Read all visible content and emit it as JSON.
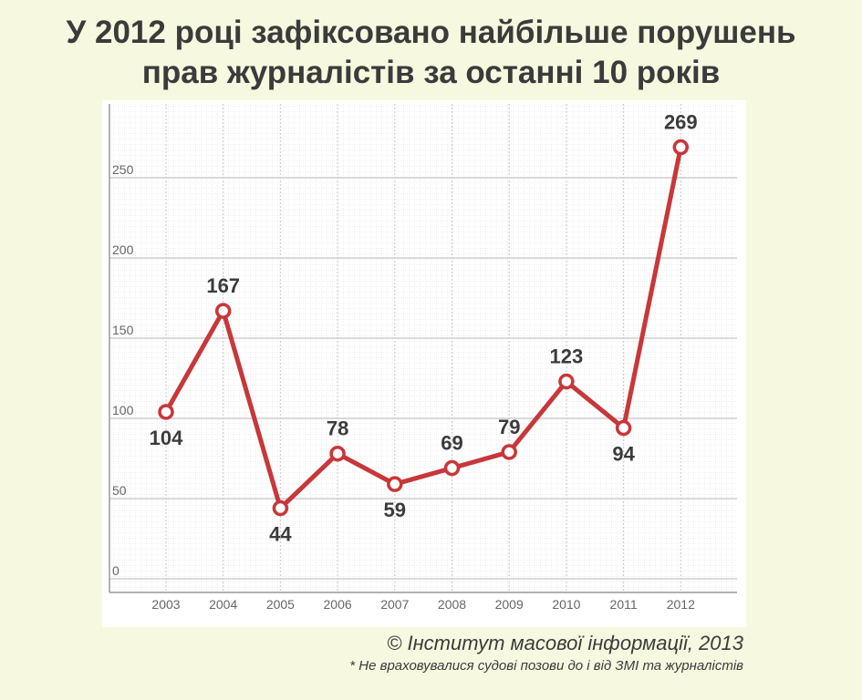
{
  "header": {
    "title_line1": "У 2012 році зафіксовано найбільше порушень",
    "title_line2": "прав журналістів за останні 10 років"
  },
  "footer": {
    "source": "© Інститут масової інформації, 2013",
    "note": "* Не враховувалися судові позови до і від ЗМІ та журналістів"
  },
  "colors": {
    "background": "#f6f9df",
    "line": "#c8373a",
    "text": "#3b3b3b",
    "grid": "#cfcfcf"
  },
  "chart_data": {
    "type": "line",
    "categories": [
      "2003",
      "2004",
      "2005",
      "2006",
      "2007",
      "2008",
      "2009",
      "2010",
      "2011",
      "2012"
    ],
    "values": [
      104,
      167,
      44,
      78,
      59,
      69,
      79,
      123,
      94,
      269
    ],
    "value_labels": [
      "104",
      "167",
      "44",
      "78",
      "59",
      "69",
      "79",
      "123",
      "94",
      "269"
    ],
    "y_ticks": [
      0,
      50,
      100,
      150,
      200,
      250
    ],
    "ylim": [
      0,
      300
    ],
    "grid": true,
    "title": "",
    "xlabel": "",
    "ylabel": ""
  }
}
